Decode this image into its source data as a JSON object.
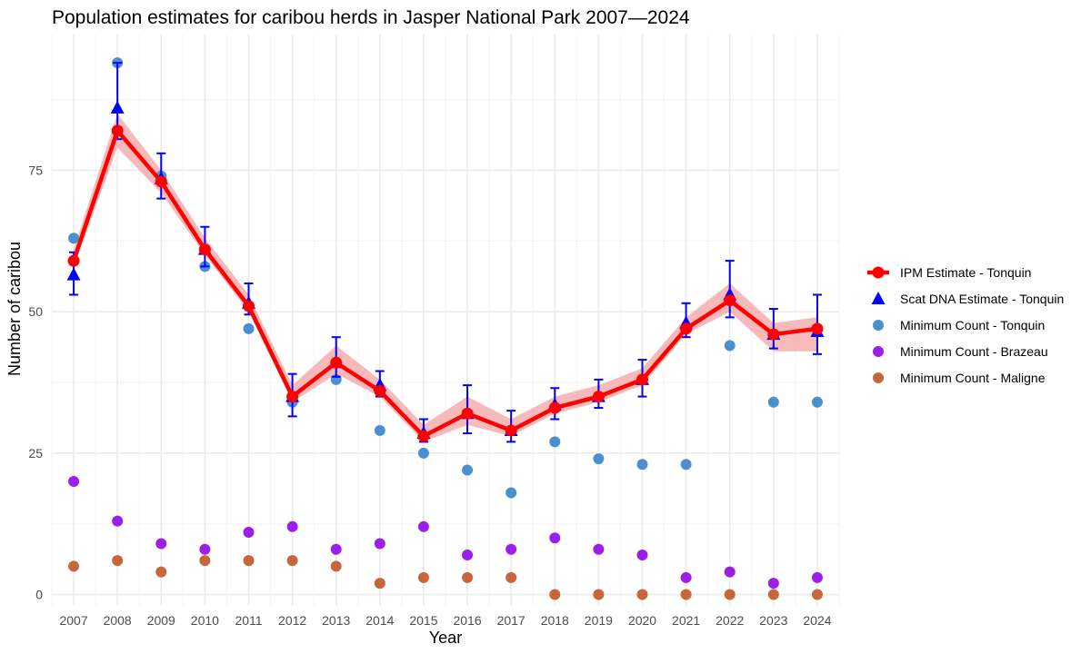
{
  "chart_data": {
    "type": "line",
    "title": "Population estimates for caribou herds in Jasper National Park 2007—2024",
    "xlabel": "Year",
    "ylabel": "Number of caribou",
    "xlim": [
      2006.5,
      2024.5
    ],
    "ylim": [
      -2,
      99
    ],
    "x_ticks": [
      2007,
      2008,
      2009,
      2010,
      2011,
      2012,
      2013,
      2014,
      2015,
      2016,
      2017,
      2018,
      2019,
      2020,
      2021,
      2022,
      2023,
      2024
    ],
    "y_ticks": [
      0,
      25,
      50,
      75
    ],
    "grid": true,
    "legend_position": "right",
    "x": [
      2007,
      2008,
      2009,
      2010,
      2011,
      2012,
      2013,
      2014,
      2015,
      2016,
      2017,
      2018,
      2019,
      2020,
      2021,
      2022,
      2023,
      2024
    ],
    "series": [
      {
        "name": "IPM Estimate - Tonquin",
        "kind": "line_points",
        "color": "#ff0000",
        "band_color": "#f4a3a3",
        "values": [
          59,
          82,
          73,
          61,
          51,
          35,
          41,
          36,
          28,
          32,
          29,
          33,
          35,
          38,
          47,
          52,
          46,
          47
        ],
        "band_low": [
          58,
          79,
          71,
          60,
          50,
          34,
          39,
          35,
          27,
          30,
          28,
          32,
          34,
          37,
          46,
          50,
          43,
          43
        ],
        "band_high": [
          61,
          85,
          75,
          63,
          53,
          37,
          44,
          38,
          30,
          35,
          31,
          35,
          37,
          40,
          49,
          55,
          48,
          49
        ]
      },
      {
        "name": "Scat DNA Estimate - Tonquin",
        "kind": "triangle_errorbar",
        "color": "#0000ff",
        "values": [
          56.5,
          86,
          73.5,
          61,
          51.5,
          35,
          41,
          37,
          28.5,
          32,
          29,
          33.5,
          35,
          38,
          48,
          53,
          46,
          46.5
        ],
        "err_low": [
          53,
          80.5,
          70,
          58,
          49.5,
          31.5,
          38.5,
          35,
          27,
          28.5,
          27,
          31,
          33,
          35,
          45.5,
          49,
          43.5,
          42.5
        ],
        "err_high": [
          60.5,
          94,
          78,
          65,
          55,
          39,
          45.5,
          39.5,
          31,
          37,
          32.5,
          36.5,
          38,
          41.5,
          51.5,
          59,
          50.5,
          53
        ]
      },
      {
        "name": "Minimum Count - Tonquin",
        "kind": "points",
        "color": "#4a8fcf",
        "values": [
          63,
          94,
          74,
          58,
          47,
          34,
          38,
          29,
          25,
          22,
          18,
          27,
          24,
          23,
          23,
          44,
          34,
          34
        ]
      },
      {
        "name": "Minimum Count - Brazeau",
        "kind": "points",
        "color": "#9b1fe8",
        "values": [
          20,
          13,
          9,
          8,
          11,
          12,
          8,
          9,
          12,
          7,
          8,
          10,
          8,
          7,
          3,
          4,
          2,
          3
        ]
      },
      {
        "name": "Minimum Count - Maligne",
        "kind": "points",
        "color": "#c8653a",
        "values": [
          5,
          6,
          4,
          6,
          6,
          6,
          5,
          2,
          3,
          3,
          3,
          0,
          0,
          0,
          0,
          0,
          0,
          0
        ]
      }
    ]
  }
}
